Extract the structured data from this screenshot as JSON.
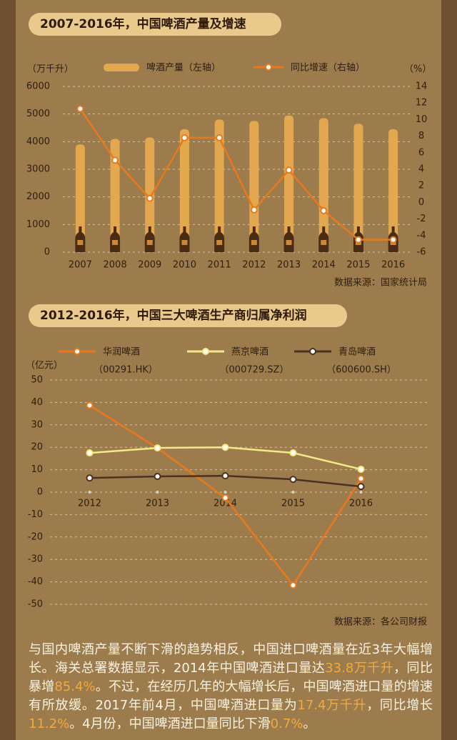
{
  "chart_data": [
    {
      "type": "bar_line",
      "title": "2007-2016年，中国啤酒产量及增速",
      "ylabel": "（万千升）",
      "y2label": "（%）",
      "categories": [
        "2007",
        "2008",
        "2009",
        "2010",
        "2011",
        "2012",
        "2013",
        "2014",
        "2015",
        "2016"
      ],
      "series": [
        {
          "name": "啤酒产量（左轴）",
          "type": "bar",
          "color": "#e3a84f",
          "values": [
            3900,
            4100,
            4150,
            4450,
            4800,
            4750,
            4950,
            4850,
            4650,
            4450
          ]
        },
        {
          "name": "同比增速（右轴）",
          "type": "line",
          "axis": "y2",
          "color": "#e8791c",
          "values": [
            11.3,
            5.1,
            0.5,
            7.8,
            7.8,
            -0.9,
            3.9,
            -1.0,
            -4.5,
            -4.5
          ]
        }
      ],
      "ylim": [
        0,
        6000
      ],
      "yticks": [
        0,
        1000,
        2000,
        3000,
        4000,
        5000,
        6000
      ],
      "y2lim": [
        -6,
        14
      ],
      "y2ticks": [
        -6,
        -4,
        -2,
        0,
        2,
        4,
        6,
        8,
        10,
        12,
        14
      ],
      "grid": true,
      "source": "数据来源：国家统计局"
    },
    {
      "type": "line",
      "title": "2012-2016年，中国三大啤酒生产商归属净利润",
      "ylabel": "（亿元）",
      "categories": [
        "2012",
        "2013",
        "2014",
        "2015",
        "2016"
      ],
      "series": [
        {
          "name": "华润啤酒",
          "code": "（00291.HK）",
          "color": "#e8791c",
          "values": [
            38.7,
            19.7,
            -2.5,
            -41.5,
            6.0
          ]
        },
        {
          "name": "燕京啤酒",
          "code": "（000729.SZ）",
          "color": "#f2ea86",
          "values": [
            17.5,
            19.7,
            20.0,
            17.5,
            10.2
          ]
        },
        {
          "name": "青岛啤酒",
          "code": "（600600.SH）",
          "color": "#4a3120",
          "values": [
            6.3,
            7.0,
            7.3,
            5.7,
            2.5
          ]
        }
      ],
      "ylim": [
        -50,
        50
      ],
      "yticks": [
        -50,
        -40,
        -30,
        -20,
        -10,
        0,
        10,
        20,
        30,
        40,
        50
      ],
      "grid": true,
      "source": "数据来源：各公司财报"
    }
  ],
  "paragraph": [
    {
      "text": "与国内啤酒产量不断下滑的趋势相反，中国进口啤酒量在近3年大幅增长。海关总署数据显示，2014年中国啤酒进口量达"
    },
    {
      "text": "33.8万千升",
      "highlight": true
    },
    {
      "text": "，同比暴增"
    },
    {
      "text": "85.4%",
      "highlight": true
    },
    {
      "text": "。不过，在经历几年的大幅增长后，中国啤酒进口量的增速有所放缓。2017年前4月，中国啤酒进口量为"
    },
    {
      "text": "17.4万千升",
      "highlight": true
    },
    {
      "text": "，同比增长"
    },
    {
      "text": "11.2%",
      "highlight": true
    },
    {
      "text": "。4月份，中国啤酒进口量同比下滑"
    },
    {
      "text": "0.7%",
      "highlight": true
    },
    {
      "text": "。"
    }
  ]
}
